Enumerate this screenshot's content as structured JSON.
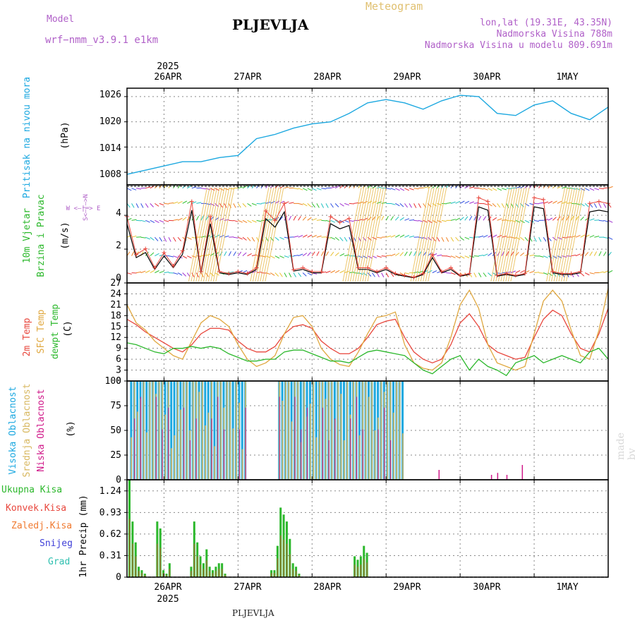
{
  "header": {
    "model_label": "Model",
    "model_name": "wrf−nmm_v3.9.1  e1km",
    "title": "PLJEVLJA",
    "meteogram_label": "Meteogram",
    "lonlat": "lon,lat (19.31E, 43.35N)",
    "elevation": "Nadmorska Visina 788m",
    "model_elevation": "Nadmorska Visina u modelu 809.691m"
  },
  "footer": {
    "station": "PLJEVLJA",
    "credit": "made by Angel"
  },
  "time_axis": {
    "year_label": "2025",
    "day_labels": [
      "26APR",
      "27APR",
      "28APR",
      "29APR",
      "30APR",
      "1MAY"
    ]
  },
  "colors": {
    "pressure": "#1ca8e0",
    "temp2m": "#e8463c",
    "sfc_temp": "#e0a840",
    "dewpt": "#2cb82c",
    "high_cloud": "#1ca8e0",
    "mid_cloud": "#d8b860",
    "low_cloud": "#d01a8a",
    "precip_total": "#2cb82c",
    "precip_conv": "#e8463c",
    "grid": "#888888"
  },
  "chart_data": [
    {
      "type": "line",
      "name": "pressure",
      "ylabel": "Pritisak na nivou mora",
      "unit": "(hPa)",
      "yticks": [
        "1026",
        "1020",
        "1014",
        "1008"
      ],
      "ylim": [
        1005,
        1028
      ],
      "x_hours": [
        0,
        6,
        12,
        18,
        24,
        30,
        36,
        42,
        48,
        54,
        60,
        66,
        72,
        78,
        84,
        90,
        96,
        102,
        108,
        114,
        120,
        126,
        132,
        138,
        144,
        150,
        156
      ],
      "series": [
        {
          "name": "",
          "values": [
            1007.5,
            1008.5,
            1009.5,
            1010.5,
            1010.5,
            1011.5,
            1012,
            1016,
            1017,
            1018.5,
            1019.5,
            1020,
            1022,
            1024.5,
            1025.3,
            1024.5,
            1023,
            1025,
            1026.3,
            1026,
            1022,
            1021.5,
            1024,
            1025,
            1022,
            1020.5,
            1023.5
          ]
        }
      ]
    },
    {
      "type": "line",
      "name": "wind",
      "ylabel_1": "10m Vjetar",
      "ylabel_2": "Brzina i Pravac",
      "unit": "(m/s)",
      "compass": "W <—|—> E",
      "compass_v": "S<—|—>N",
      "yticks": [
        "4",
        "2",
        "0"
      ],
      "ylim": [
        0,
        5.8
      ],
      "x_hours": [
        0,
        3,
        6,
        9,
        12,
        15,
        18,
        21,
        24,
        27,
        30,
        33,
        36,
        39,
        42,
        45,
        48,
        51,
        54,
        57,
        60,
        63,
        66,
        69,
        72,
        75,
        78,
        81,
        84,
        87,
        90,
        93,
        96,
        99,
        102,
        105,
        108,
        111,
        114,
        117,
        120,
        123,
        126,
        129,
        132,
        135,
        138,
        141,
        144,
        147,
        150,
        153,
        156
      ],
      "series": [
        {
          "name": "",
          "values": [
            3.5,
            1.5,
            1.8,
            0.8,
            1.6,
            0.9,
            1.7,
            4.3,
            0.6,
            3.5,
            0.6,
            0.5,
            0.6,
            0.5,
            0.8,
            3.8,
            3.3,
            4.2,
            0.7,
            0.8,
            0.6,
            0.6,
            3.5,
            3.2,
            3.4,
            0.8,
            0.8,
            0.6,
            0.8,
            0.5,
            0.4,
            0.3,
            0.5,
            1.5,
            0.6,
            0.8,
            0.4,
            0.5,
            4.5,
            4.3,
            0.4,
            0.5,
            0.4,
            0.5,
            4.5,
            4.4,
            0.6,
            0.5,
            0.5,
            0.6,
            4.2,
            4.3,
            4.2
          ]
        }
      ]
    },
    {
      "type": "line",
      "name": "temperature",
      "ylabel_1": "2m Temp",
      "ylabel_2": "SFC Temp",
      "ylabel_3": "dewpt Temp",
      "unit": "(C)",
      "yticks": [
        "27",
        "24",
        "21",
        "18",
        "15",
        "12",
        "9",
        "6",
        "3",
        "0"
      ],
      "ylim": [
        0,
        27
      ],
      "x_hours": [
        0,
        3,
        6,
        9,
        12,
        15,
        18,
        21,
        24,
        27,
        30,
        33,
        36,
        39,
        42,
        45,
        48,
        51,
        54,
        57,
        60,
        63,
        66,
        69,
        72,
        75,
        78,
        81,
        84,
        87,
        90,
        93,
        96,
        99,
        102,
        105,
        108,
        111,
        114,
        117,
        120,
        123,
        126,
        129,
        132,
        135,
        138,
        141,
        144,
        147,
        150,
        153,
        156
      ],
      "series": [
        {
          "name": "2m Temp",
          "values": [
            17,
            15.5,
            13.5,
            12,
            10.5,
            9,
            8,
            10,
            13,
            14.5,
            14.5,
            14,
            11,
            9,
            8,
            8,
            9.5,
            13,
            15,
            15.5,
            14.5,
            11,
            9,
            7.5,
            7.5,
            9,
            12,
            15.5,
            16.5,
            17,
            12,
            8,
            6,
            5,
            6,
            10,
            16,
            18.5,
            15,
            10,
            8,
            7,
            6,
            6.5,
            12,
            17,
            19.5,
            18,
            13,
            9,
            8,
            13,
            20
          ]
        },
        {
          "name": "SFC Temp",
          "values": [
            21,
            16,
            14,
            11,
            9,
            7,
            6,
            11,
            16,
            18,
            17,
            15,
            10,
            6,
            4,
            5,
            7,
            13,
            17.5,
            18,
            15,
            9,
            6,
            4.5,
            4,
            8,
            13,
            17.5,
            18,
            19,
            10,
            5,
            3.5,
            3,
            5,
            12,
            21,
            25,
            20,
            10,
            5,
            4,
            3,
            4,
            13,
            22,
            25,
            22,
            14,
            7,
            6,
            14,
            25.5
          ]
        },
        {
          "name": "dewpt Temp",
          "values": [
            10.5,
            10,
            9,
            8,
            7.5,
            9,
            9,
            9.5,
            9,
            9.5,
            9,
            7.5,
            6.5,
            5.5,
            5.5,
            6,
            6,
            8,
            8.5,
            8.5,
            7.5,
            6.5,
            5.5,
            5.5,
            5,
            6.5,
            8,
            8.5,
            8,
            7.5,
            7,
            5,
            3,
            2,
            4,
            6,
            7,
            3,
            6,
            4,
            3,
            1.5,
            5,
            6,
            7,
            5,
            6,
            7,
            6,
            5,
            8,
            9,
            6
          ]
        }
      ]
    },
    {
      "type": "bar",
      "name": "cloud_cover",
      "ylabel_1": "Visoka Oblacnost",
      "ylabel_2": "Srednja Oblacnost",
      "ylabel_3": "Niska Oblacnost",
      "unit": "(%)",
      "yticks": [
        "100",
        "75",
        "50",
        "25",
        "0"
      ],
      "ylim": [
        0,
        100
      ],
      "high_cloud_blocks_hours": [
        [
          1,
          19
        ],
        [
          19,
          39
        ],
        [
          49,
          55
        ],
        [
          55,
          74
        ],
        [
          74,
          90
        ]
      ],
      "series": [
        {
          "name": "Visoka Oblacnost",
          "values": [
            100
          ]
        },
        {
          "name": "Srednja Oblacnost",
          "values": [
            100
          ]
        },
        {
          "name": "Niska Oblacnost",
          "values": [
            10,
            5,
            7,
            5,
            15
          ]
        }
      ],
      "low_cloud_spike_hours": [
        101,
        118,
        120,
        123,
        128
      ]
    },
    {
      "type": "bar",
      "name": "precipitation",
      "ylabel_1": "Ukupna Kisa",
      "ylabel_2": "Konvek.Kisa",
      "ylabel_3": "Zaledj.Kisa",
      "ylabel_4": "Snijeg",
      "ylabel_5": "Grad",
      "unit": "1hr Precip (mm)",
      "yticks": [
        "1.24",
        "0.93",
        "0.62",
        "0.31",
        "0"
      ],
      "ylim": [
        0,
        1.4
      ],
      "x_hours": [
        0,
        1,
        2,
        3,
        4,
        5,
        9,
        10,
        11,
        12,
        13,
        20,
        21,
        22,
        23,
        24,
        25,
        26,
        27,
        28,
        29,
        30,
        31,
        46,
        47,
        48,
        49,
        50,
        51,
        52,
        53,
        54,
        55,
        73,
        74,
        75,
        76,
        77
      ],
      "series": [
        {
          "name": "Ukupna Kisa",
          "values": [
            1.4,
            0.8,
            0.5,
            0.15,
            0.1,
            0.05,
            0.8,
            0.7,
            0.1,
            0.05,
            0.2,
            0.15,
            0.8,
            0.5,
            0.3,
            0.2,
            0.4,
            0.15,
            0.1,
            0.15,
            0.2,
            0.2,
            0.05,
            0.1,
            0.1,
            0.45,
            1.0,
            0.9,
            0.8,
            0.55,
            0.2,
            0.15,
            0.05,
            0.3,
            0.25,
            0.3,
            0.45,
            0.35
          ]
        }
      ]
    }
  ]
}
